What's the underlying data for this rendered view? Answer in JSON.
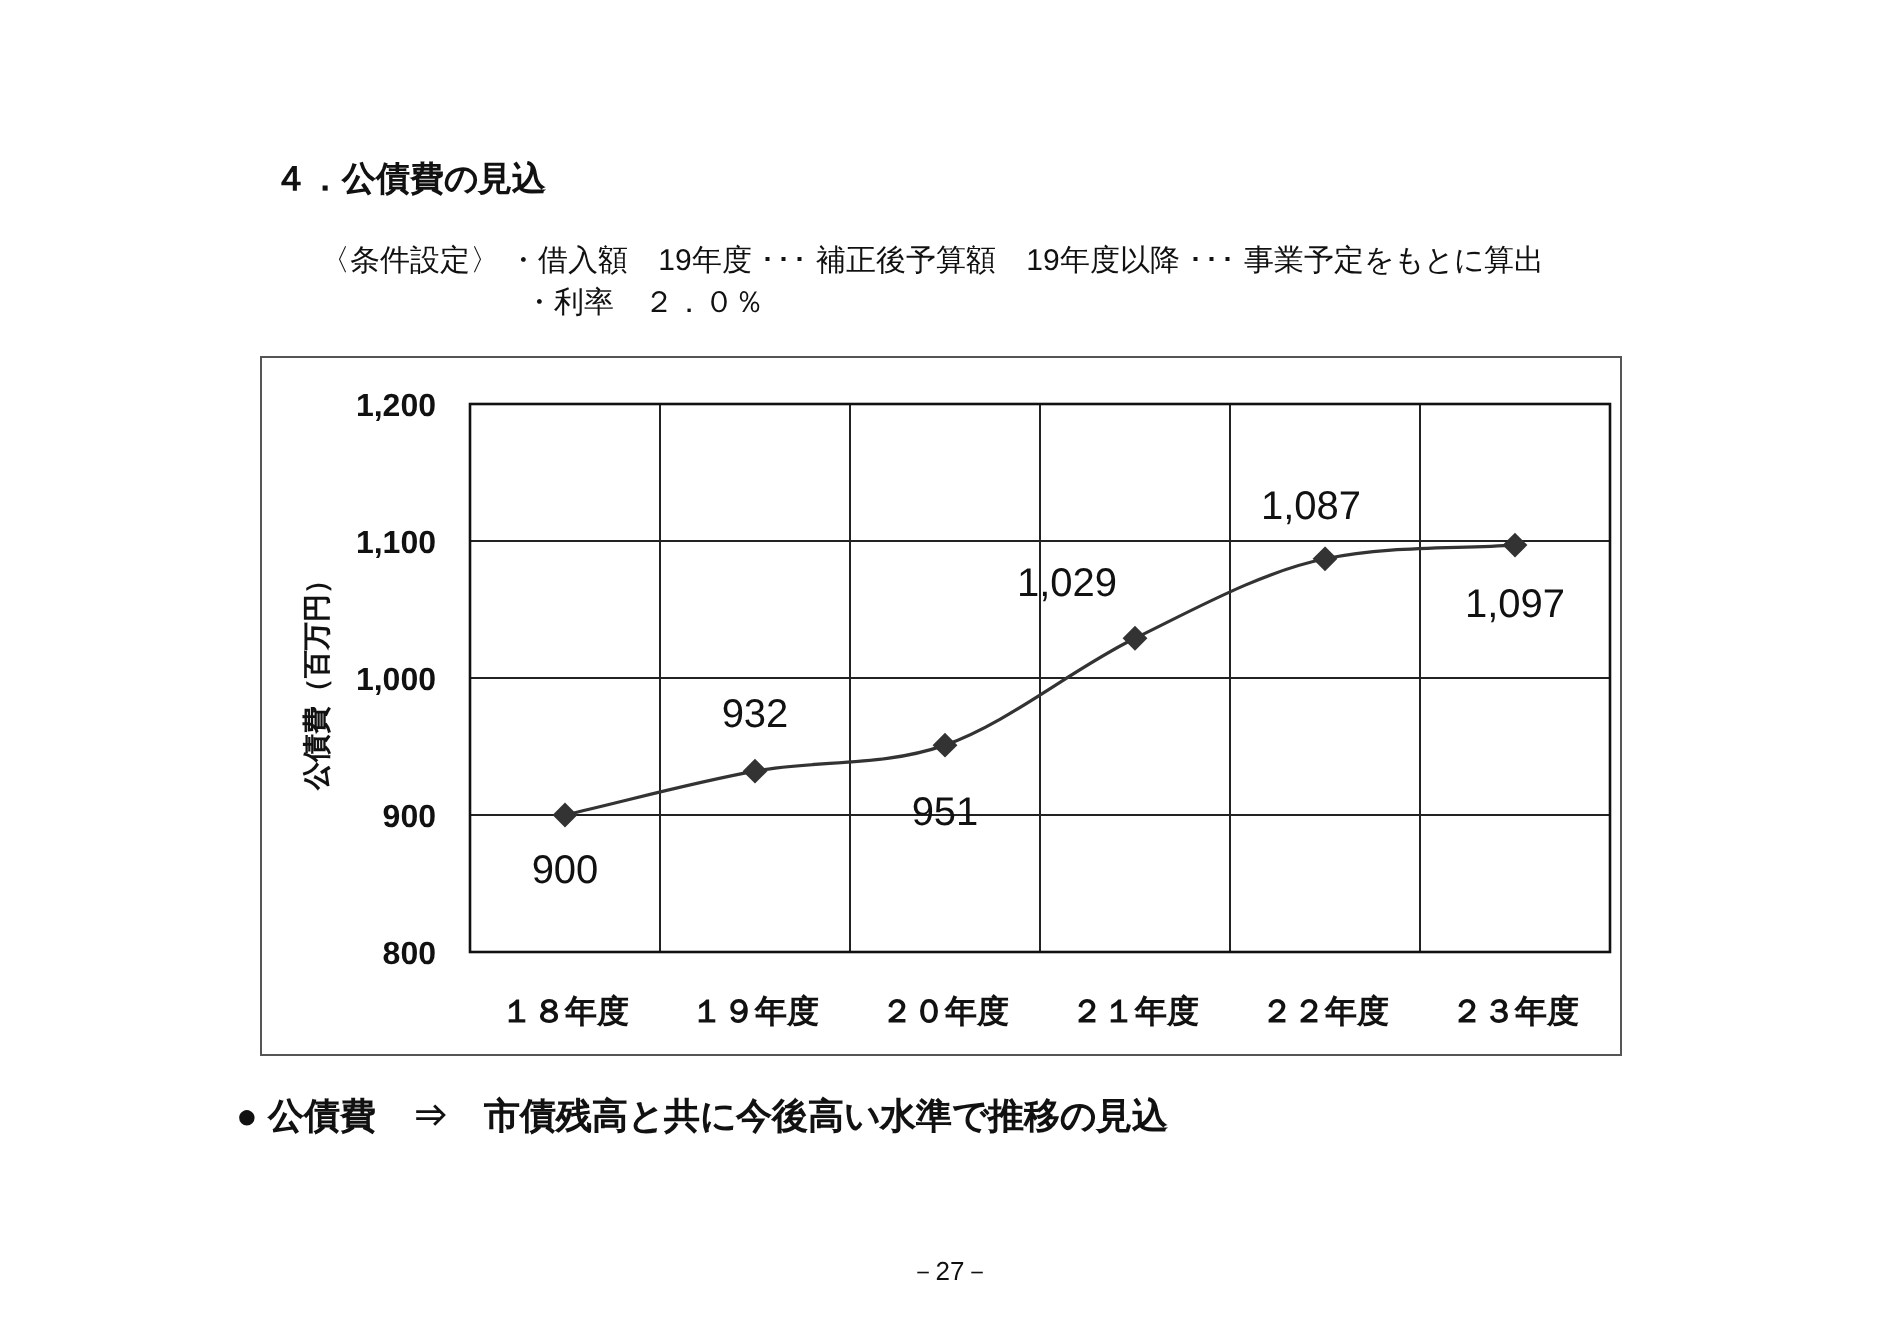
{
  "chart_data": {
    "type": "line",
    "title": "４．公債費の見込",
    "subtitle": "〈条件設定〉 ・借入額　19年度 ･･･ 補正後予算額　19年度以降 ･･･ 事業予定をもとに算出",
    "ylabel": "公債費（百万円）",
    "categories": [
      "１８年度",
      "１９年度",
      "２０年度",
      "２１年度",
      "２２年度",
      "２３年度"
    ],
    "values": [
      900,
      932,
      951,
      1029,
      1087,
      1097
    ],
    "value_labels": [
      "900",
      "932",
      "951",
      "1,029",
      "1,087",
      "1,097"
    ],
    "color": "#333333",
    "ylim": [
      800,
      1200
    ],
    "yticks": [
      800,
      900,
      {
        "value": 1000,
        "label": "1,000"
      },
      {
        "value": 1100,
        "label": "1,100"
      },
      {
        "value": 1200,
        "label": "1,200"
      }
    ],
    "grid": true,
    "marker": "diamond",
    "line_style": "solid",
    "annotations": [
      "・利率　２．０％",
      "● 公債費　⇒　市債残高と共に今後高い水準で推移の見込",
      "－27－"
    ]
  }
}
